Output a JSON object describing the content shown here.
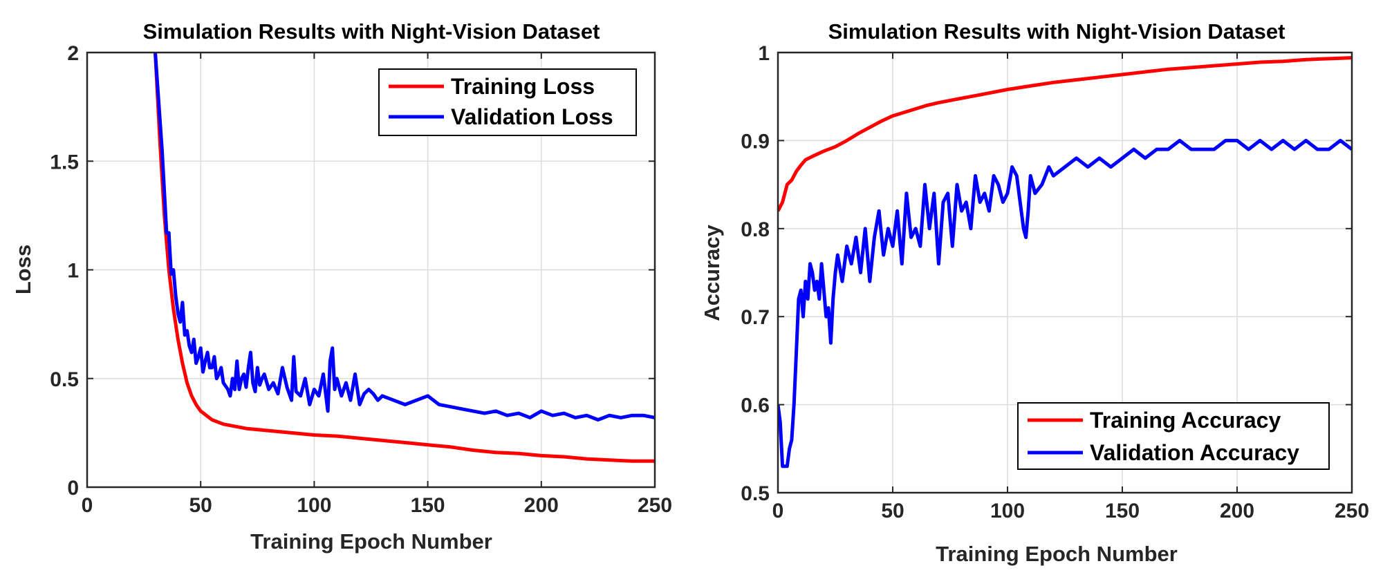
{
  "chart_data": [
    {
      "type": "line",
      "title": "Simulation Results with Night-Vision Dataset",
      "xlabel": "Training Epoch Number",
      "ylabel": "Loss",
      "xlim": [
        0,
        250
      ],
      "ylim": [
        0,
        2
      ],
      "xticks": [
        0,
        50,
        100,
        150,
        200,
        250
      ],
      "xtick_labels": [
        "0",
        "50",
        "100",
        "150",
        "200",
        "250"
      ],
      "yticks": [
        0,
        0.5,
        1,
        1.5,
        2
      ],
      "ytick_labels": [
        "0",
        "0.5",
        "1",
        "1.5",
        "2"
      ],
      "grid": true,
      "legend_position": "top-right",
      "series": [
        {
          "name": "Training Loss",
          "color": "#ff0000",
          "x": [
            30,
            32,
            34,
            36,
            38,
            40,
            42,
            44,
            46,
            48,
            50,
            55,
            60,
            65,
            70,
            80,
            90,
            100,
            110,
            120,
            130,
            140,
            150,
            160,
            170,
            180,
            190,
            200,
            210,
            220,
            230,
            240,
            250
          ],
          "y": [
            2.0,
            1.6,
            1.25,
            1.0,
            0.82,
            0.68,
            0.57,
            0.48,
            0.42,
            0.38,
            0.35,
            0.31,
            0.29,
            0.28,
            0.27,
            0.26,
            0.25,
            0.24,
            0.235,
            0.225,
            0.215,
            0.205,
            0.195,
            0.185,
            0.17,
            0.16,
            0.155,
            0.145,
            0.14,
            0.13,
            0.125,
            0.12,
            0.12
          ]
        },
        {
          "name": "Validation Loss",
          "color": "#0000ff",
          "x": [
            30,
            33,
            35,
            36,
            37,
            38,
            39,
            40,
            41,
            42,
            43,
            44,
            45,
            46,
            47,
            48,
            49,
            50,
            51,
            52,
            53,
            54,
            55,
            56,
            57,
            58,
            59,
            60,
            62,
            63,
            64,
            65,
            66,
            67,
            68,
            69,
            70,
            71,
            72,
            73,
            74,
            75,
            76,
            77,
            78,
            80,
            82,
            84,
            86,
            88,
            90,
            91,
            92,
            94,
            96,
            98,
            100,
            102,
            104,
            106,
            107,
            108,
            109,
            110,
            112,
            114,
            116,
            118,
            120,
            122,
            124,
            126,
            128,
            130,
            135,
            140,
            145,
            150,
            155,
            160,
            165,
            170,
            175,
            180,
            185,
            190,
            195,
            200,
            205,
            210,
            215,
            220,
            225,
            230,
            235,
            240,
            245,
            250
          ],
          "y": [
            2.0,
            1.55,
            1.17,
            1.17,
            0.98,
            1.0,
            0.88,
            0.8,
            0.76,
            0.85,
            0.7,
            0.72,
            0.65,
            0.62,
            0.68,
            0.57,
            0.6,
            0.64,
            0.53,
            0.58,
            0.62,
            0.55,
            0.55,
            0.6,
            0.5,
            0.52,
            0.55,
            0.48,
            0.45,
            0.42,
            0.5,
            0.45,
            0.58,
            0.45,
            0.5,
            0.52,
            0.46,
            0.55,
            0.62,
            0.48,
            0.44,
            0.55,
            0.47,
            0.5,
            0.52,
            0.45,
            0.48,
            0.43,
            0.55,
            0.46,
            0.4,
            0.6,
            0.44,
            0.42,
            0.5,
            0.38,
            0.45,
            0.42,
            0.52,
            0.35,
            0.58,
            0.64,
            0.45,
            0.5,
            0.42,
            0.48,
            0.4,
            0.52,
            0.38,
            0.43,
            0.45,
            0.43,
            0.4,
            0.42,
            0.4,
            0.38,
            0.4,
            0.42,
            0.38,
            0.37,
            0.36,
            0.35,
            0.34,
            0.35,
            0.33,
            0.34,
            0.32,
            0.35,
            0.33,
            0.34,
            0.32,
            0.33,
            0.31,
            0.33,
            0.32,
            0.33,
            0.33,
            0.32
          ]
        }
      ]
    },
    {
      "type": "line",
      "title": "Simulation Results with Night-Vision Dataset",
      "xlabel": "Training Epoch Number",
      "ylabel": "Accuracy",
      "xlim": [
        0,
        250
      ],
      "ylim": [
        0.5,
        1
      ],
      "xticks": [
        0,
        50,
        100,
        150,
        200,
        250
      ],
      "xtick_labels": [
        "0",
        "50",
        "100",
        "150",
        "200",
        "250"
      ],
      "yticks": [
        0.5,
        0.6,
        0.7,
        0.8,
        0.9,
        1
      ],
      "ytick_labels": [
        "0.5",
        "0.6",
        "0.7",
        "0.8",
        "0.9",
        "1"
      ],
      "grid": true,
      "legend_position": "bottom-right",
      "series": [
        {
          "name": "Training Accuracy",
          "color": "#ff0000",
          "x": [
            0,
            2,
            4,
            6,
            8,
            10,
            12,
            15,
            20,
            25,
            30,
            35,
            40,
            45,
            50,
            55,
            60,
            65,
            70,
            80,
            90,
            100,
            110,
            120,
            130,
            140,
            150,
            160,
            170,
            180,
            190,
            200,
            210,
            220,
            230,
            240,
            250
          ],
          "y": [
            0.82,
            0.83,
            0.85,
            0.855,
            0.865,
            0.872,
            0.878,
            0.882,
            0.888,
            0.893,
            0.9,
            0.908,
            0.915,
            0.922,
            0.928,
            0.932,
            0.936,
            0.94,
            0.943,
            0.948,
            0.953,
            0.958,
            0.962,
            0.966,
            0.969,
            0.972,
            0.975,
            0.978,
            0.981,
            0.983,
            0.985,
            0.987,
            0.989,
            0.99,
            0.992,
            0.993,
            0.994
          ]
        },
        {
          "name": "Validation Accuracy",
          "color": "#0000ff",
          "x": [
            0,
            1,
            2,
            3,
            4,
            5,
            6,
            7,
            8,
            9,
            10,
            11,
            12,
            13,
            14,
            15,
            16,
            17,
            18,
            19,
            20,
            21,
            22,
            23,
            24,
            25,
            26,
            28,
            30,
            32,
            34,
            36,
            38,
            40,
            42,
            44,
            46,
            48,
            50,
            52,
            54,
            56,
            58,
            60,
            62,
            64,
            66,
            68,
            70,
            72,
            74,
            76,
            78,
            80,
            82,
            84,
            86,
            88,
            90,
            92,
            94,
            96,
            98,
            100,
            102,
            104,
            106,
            107,
            108,
            109,
            110,
            112,
            115,
            118,
            120,
            125,
            130,
            135,
            140,
            145,
            150,
            155,
            160,
            165,
            170,
            175,
            180,
            185,
            190,
            195,
            200,
            205,
            210,
            215,
            220,
            225,
            230,
            235,
            240,
            245,
            250
          ],
          "y": [
            0.6,
            0.58,
            0.53,
            0.53,
            0.53,
            0.55,
            0.56,
            0.6,
            0.66,
            0.72,
            0.73,
            0.7,
            0.74,
            0.72,
            0.76,
            0.75,
            0.73,
            0.74,
            0.72,
            0.76,
            0.73,
            0.7,
            0.71,
            0.67,
            0.72,
            0.75,
            0.77,
            0.74,
            0.78,
            0.76,
            0.79,
            0.75,
            0.8,
            0.74,
            0.79,
            0.82,
            0.77,
            0.8,
            0.78,
            0.82,
            0.76,
            0.84,
            0.79,
            0.8,
            0.78,
            0.85,
            0.8,
            0.84,
            0.76,
            0.83,
            0.84,
            0.78,
            0.85,
            0.82,
            0.83,
            0.8,
            0.86,
            0.83,
            0.84,
            0.82,
            0.86,
            0.85,
            0.83,
            0.84,
            0.87,
            0.86,
            0.82,
            0.8,
            0.79,
            0.82,
            0.86,
            0.84,
            0.85,
            0.87,
            0.86,
            0.87,
            0.88,
            0.87,
            0.88,
            0.87,
            0.88,
            0.89,
            0.88,
            0.89,
            0.89,
            0.9,
            0.89,
            0.89,
            0.89,
            0.9,
            0.9,
            0.89,
            0.9,
            0.89,
            0.9,
            0.89,
            0.9,
            0.89,
            0.89,
            0.9,
            0.89
          ]
        }
      ]
    }
  ]
}
